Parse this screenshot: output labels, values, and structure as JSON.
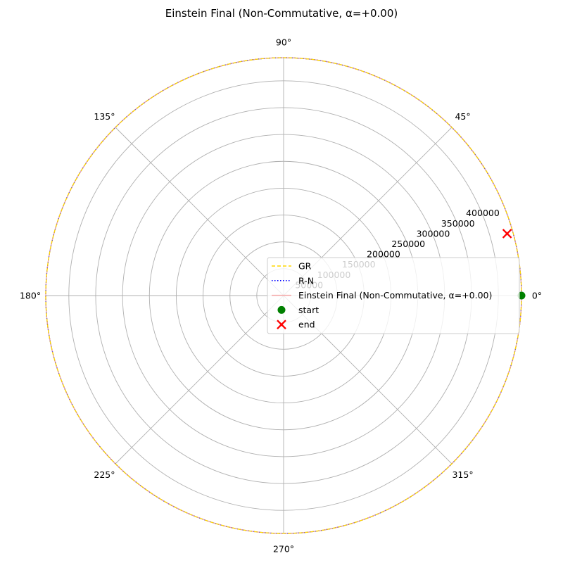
{
  "chart_data": {
    "type": "polar-line",
    "title": "Einstein Final (Non-Commutative, α=+0.00)",
    "theta_ticks_deg": [
      0,
      45,
      90,
      135,
      180,
      225,
      270,
      315
    ],
    "theta_tick_labels": [
      "0°",
      "45°",
      "90°",
      "135°",
      "180°",
      "225°",
      "270°",
      "315°"
    ],
    "r_ticks": [
      50000,
      100000,
      150000,
      200000,
      250000,
      300000,
      350000,
      400000
    ],
    "r_tick_labels": [
      "50000",
      "100000",
      "150000",
      "200000",
      "250000",
      "300000",
      "350000",
      "400000"
    ],
    "rlim": [
      0,
      443000
    ],
    "grid": true,
    "legend_placement": "center-right",
    "series": [
      {
        "name": "GR",
        "style": "dashed",
        "color": "#ffd700",
        "r": 443000,
        "theta_range_deg": [
          0,
          360
        ]
      },
      {
        "name": "R-N",
        "style": "dotted",
        "color": "#0000ff",
        "r": 443000,
        "theta_range_deg": [
          0,
          360
        ]
      },
      {
        "name": "Einstein Final (Non-Commutative, α=+0.00)",
        "style": "solid",
        "color": "#f4a6a6",
        "r": 443000,
        "theta_range_deg": [
          0,
          360
        ]
      }
    ],
    "markers": [
      {
        "name": "start",
        "shape": "circle",
        "color": "#008000",
        "r": 443000,
        "theta_deg": 0
      },
      {
        "name": "end",
        "shape": "x",
        "color": "#ff0000",
        "r": 432000,
        "theta_deg": 15.5
      }
    ]
  }
}
